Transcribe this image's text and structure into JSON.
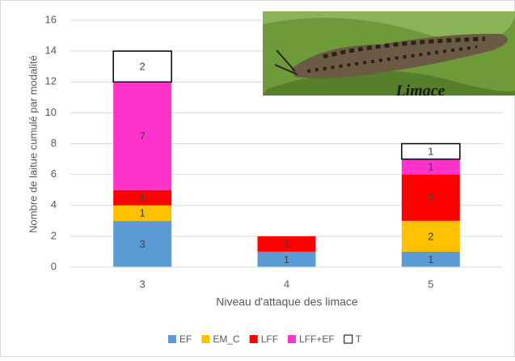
{
  "chart_data": {
    "type": "stacked_bar",
    "y_label": "Nombre de laitue cumulé par modalité",
    "x_label": "Niveau d'attaque des limace",
    "image_caption": "Limace",
    "categories": [
      "3",
      "4",
      "5"
    ],
    "series": [
      {
        "name": "EF",
        "color": "#5b9bd5",
        "values": [
          3,
          1,
          1
        ]
      },
      {
        "name": "EM_C",
        "color": "#ffc000",
        "values": [
          1,
          null,
          2
        ]
      },
      {
        "name": "LFF",
        "color": "#ff0000",
        "values": [
          1,
          1,
          3
        ]
      },
      {
        "name": "LFF+EF",
        "color": "#ff33cc",
        "values": [
          7,
          null,
          1
        ]
      },
      {
        "name": "T",
        "color": "#ffffff",
        "values": [
          2,
          null,
          1
        ]
      }
    ],
    "ylim": [
      0,
      16
    ],
    "yticks": [
      0,
      2,
      4,
      6,
      8,
      10,
      12,
      14,
      16
    ],
    "grid": true
  }
}
